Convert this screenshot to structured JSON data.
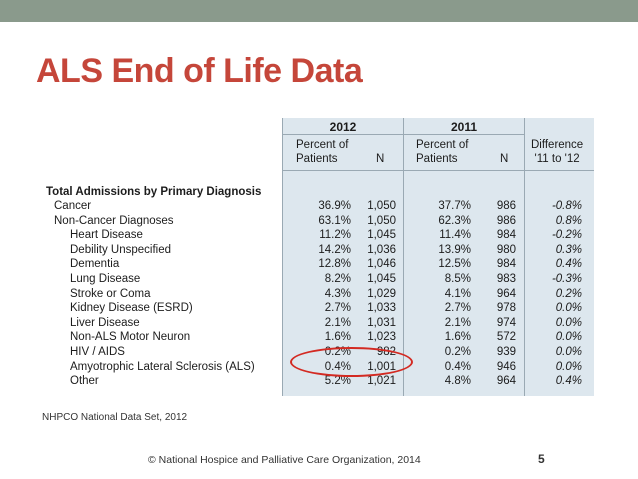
{
  "slide": {
    "title": "ALS End of Life Data",
    "source": "NHPCO National Data Set, 2012",
    "copyright": "© National Hospice and Palliative Care Organization, 2014",
    "page_number": "5"
  },
  "table": {
    "year_2012": "2012",
    "year_2011": "2011",
    "col_percent_2012": "Percent of\nPatients",
    "col_n_2012": "N",
    "col_percent_2011": "Percent of\nPatients",
    "col_n_2011": "N",
    "col_difference": "Difference\n'11 to '12",
    "section_heading": "Total Admissions by Primary Diagnosis",
    "rows": [
      {
        "label": "Cancer",
        "p2012": "36.9%",
        "n2012": "1,050",
        "p2011": "37.7%",
        "n2011": "986",
        "diff": "-0.8%"
      },
      {
        "label": "Non-Cancer Diagnoses",
        "p2012": "63.1%",
        "n2012": "1,050",
        "p2011": "62.3%",
        "n2011": "986",
        "diff": "0.8%"
      },
      {
        "label": "Heart Disease",
        "p2012": "11.2%",
        "n2012": "1,045",
        "p2011": "11.4%",
        "n2011": "984",
        "diff": "-0.2%"
      },
      {
        "label": "Debility Unspecified",
        "p2012": "14.2%",
        "n2012": "1,036",
        "p2011": "13.9%",
        "n2011": "980",
        "diff": "0.3%"
      },
      {
        "label": "Dementia",
        "p2012": "12.8%",
        "n2012": "1,046",
        "p2011": "12.5%",
        "n2011": "984",
        "diff": "0.4%"
      },
      {
        "label": "Lung Disease",
        "p2012": "8.2%",
        "n2012": "1,045",
        "p2011": "8.5%",
        "n2011": "983",
        "diff": "-0.3%"
      },
      {
        "label": "Stroke or Coma",
        "p2012": "4.3%",
        "n2012": "1,029",
        "p2011": "4.1%",
        "n2011": "964",
        "diff": "0.2%"
      },
      {
        "label": "Kidney Disease (ESRD)",
        "p2012": "2.7%",
        "n2012": "1,033",
        "p2011": "2.7%",
        "n2011": "978",
        "diff": "0.0%"
      },
      {
        "label": "Liver Disease",
        "p2012": "2.1%",
        "n2012": "1,031",
        "p2011": "2.1%",
        "n2011": "974",
        "diff": "0.0%"
      },
      {
        "label": "Non-ALS Motor Neuron",
        "p2012": "1.6%",
        "n2012": "1,023",
        "p2011": "1.6%",
        "n2011": "572",
        "diff": "0.0%"
      },
      {
        "label": "HIV / AIDS",
        "p2012": "0.2%",
        "n2012": "982",
        "p2011": "0.2%",
        "n2011": "939",
        "diff": "0.0%"
      },
      {
        "label": "Amyotrophic Lateral Sclerosis (ALS)",
        "p2012": "0.4%",
        "n2012": "1,001",
        "p2011": "0.4%",
        "n2011": "946",
        "diff": "0.0%"
      },
      {
        "label": "Other",
        "p2012": "5.2%",
        "n2012": "1,021",
        "p2011": "4.8%",
        "n2011": "964",
        "diff": "0.4%"
      }
    ]
  },
  "colors": {
    "title_red": "#c5463a",
    "top_bar": "#8a9a8c",
    "column_shade": "#dde7ee",
    "circle_highlight": "#d32a22"
  }
}
